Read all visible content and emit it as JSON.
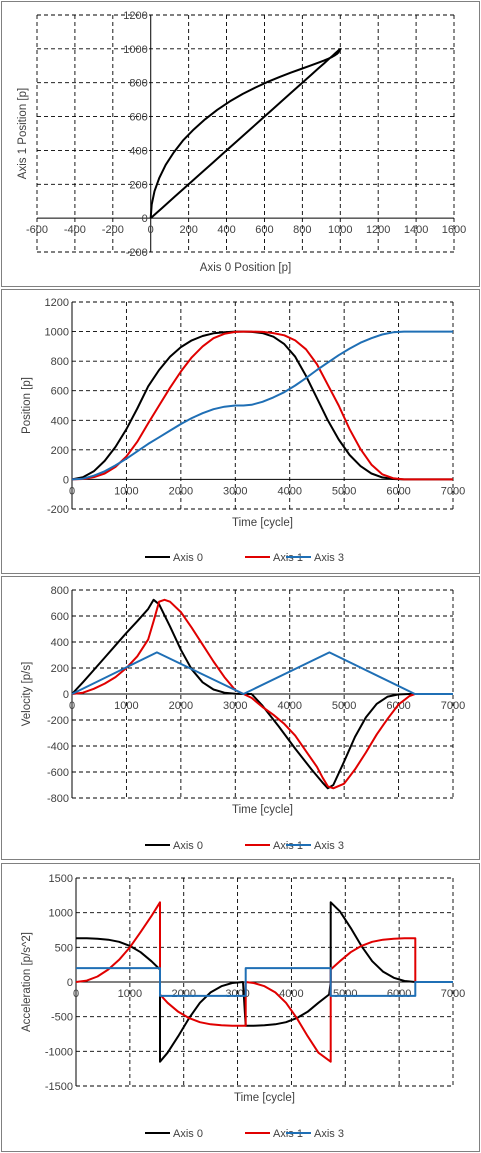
{
  "chart_data": [
    {
      "type": "line",
      "title": "",
      "xlabel": "Axis 0 Position [p]",
      "ylabel": "Axis 1 Position [p]",
      "xlim": [
        -600,
        1600
      ],
      "ylim": [
        -200,
        1200
      ],
      "xticks": [
        -600,
        -400,
        -200,
        0,
        200,
        400,
        600,
        800,
        1000,
        1200,
        1400,
        1600
      ],
      "yticks": [
        -200,
        0,
        200,
        400,
        600,
        800,
        1000,
        1200
      ],
      "grid": true,
      "legend": "none",
      "series": [
        {
          "color": "#000000",
          "x": [
            0,
            5,
            20,
            45,
            79,
            121,
            170,
            226,
            287,
            351,
            418,
            486,
            553,
            619,
            682,
            740,
            793,
            839,
            879,
            912,
            938,
            958,
            973,
            983,
            990,
            995,
            998,
            1000,
            1000,
            997,
            993,
            986,
            976,
            961,
            941,
            916,
            885,
            847,
            803,
            754,
            700,
            642,
            581,
            518,
            455,
            392,
            331,
            273,
            220,
            170,
            126,
            88,
            56,
            31,
            14,
            4,
            0
          ],
          "y": [
            0,
            80,
            159,
            238,
            315,
            388,
            458,
            523,
            584,
            640,
            690,
            734,
            772,
            806,
            835,
            860,
            881,
            900,
            916,
            930,
            942,
            953,
            963,
            971,
            979,
            986,
            993,
            1000,
            1000,
            997,
            993,
            986,
            976,
            961,
            941,
            916,
            885,
            847,
            803,
            754,
            700,
            642,
            581,
            518,
            455,
            392,
            331,
            273,
            220,
            170,
            126,
            88,
            56,
            31,
            14,
            4,
            0
          ]
        }
      ]
    },
    {
      "type": "line",
      "title": "",
      "xlabel": "Time [cycle]",
      "ylabel": "Position [p]",
      "xlim": [
        0,
        7000
      ],
      "ylim": [
        -200,
        1200
      ],
      "xticks": [
        0,
        1000,
        2000,
        3000,
        4000,
        5000,
        6000,
        7000
      ],
      "yticks": [
        -200,
        0,
        200,
        400,
        600,
        800,
        1000,
        1200
      ],
      "grid": true,
      "legend": "bottom",
      "series": [
        {
          "name": "Axis 0",
          "color": "#000000",
          "x": [
            0,
            200,
            400,
            600,
            800,
            1000,
            1200,
            1400,
            1600,
            1800,
            2000,
            2200,
            2400,
            2600,
            2800,
            3000,
            3150,
            3300,
            3500,
            3700,
            3900,
            4100,
            4300,
            4500,
            4700,
            4900,
            5100,
            5300,
            5500,
            5700,
            5900,
            6100,
            6300,
            7000
          ],
          "y": [
            0,
            15,
            55,
            125,
            220,
            340,
            480,
            630,
            740,
            830,
            895,
            940,
            970,
            988,
            996,
            1000,
            1000,
            998,
            990,
            965,
            915,
            830,
            700,
            550,
            400,
            270,
            165,
            90,
            40,
            14,
            3,
            0,
            0,
            0
          ]
        },
        {
          "name": "Axis 1",
          "color": "#e00000",
          "x": [
            0,
            200,
            400,
            600,
            800,
            1000,
            1200,
            1400,
            1600,
            1800,
            2000,
            2200,
            2400,
            2600,
            2800,
            3000,
            3150,
            3300,
            3500,
            3700,
            3900,
            4100,
            4300,
            4500,
            4700,
            4900,
            5100,
            5300,
            5500,
            5700,
            5900,
            6100,
            6300,
            7000
          ],
          "y": [
            0,
            3,
            15,
            40,
            85,
            155,
            255,
            380,
            500,
            620,
            730,
            825,
            900,
            955,
            985,
            998,
            1000,
            1000,
            998,
            990,
            975,
            940,
            880,
            780,
            640,
            500,
            340,
            205,
            100,
            35,
            8,
            0,
            0,
            0
          ]
        },
        {
          "name": "Axis 3",
          "color": "#1f6fb5",
          "x": [
            0,
            200,
            400,
            600,
            800,
            1000,
            1200,
            1400,
            1600,
            1800,
            2000,
            2200,
            2400,
            2600,
            2800,
            3000,
            3150,
            3300,
            3500,
            3700,
            3900,
            4100,
            4300,
            4500,
            4700,
            4900,
            5100,
            5300,
            5500,
            5700,
            5900,
            6100,
            6300,
            7000
          ],
          "y": [
            0,
            5,
            25,
            55,
            95,
            140,
            190,
            240,
            285,
            330,
            375,
            415,
            448,
            475,
            492,
            500,
            500,
            505,
            525,
            555,
            590,
            635,
            685,
            740,
            790,
            840,
            885,
            925,
            955,
            980,
            995,
            1000,
            1000,
            1000
          ]
        }
      ]
    },
    {
      "type": "line",
      "title": "",
      "xlabel": "Time [cycle]",
      "ylabel": "Velocity [p/s]",
      "xlim": [
        0,
        7000
      ],
      "ylim": [
        -800,
        800
      ],
      "xticks": [
        0,
        1000,
        2000,
        3000,
        4000,
        5000,
        6000,
        7000
      ],
      "yticks": [
        -800,
        -600,
        -400,
        -200,
        0,
        200,
        400,
        600,
        800
      ],
      "grid": true,
      "legend": "bottom",
      "series": [
        {
          "name": "Axis 0",
          "color": "#000000",
          "x": [
            0,
            200,
            400,
            600,
            800,
            1000,
            1200,
            1400,
            1500,
            1600,
            1800,
            2000,
            2200,
            2400,
            2600,
            2800,
            3000,
            3150,
            3300,
            3500,
            3800,
            4100,
            4400,
            4600,
            4700,
            4800,
            5000,
            5200,
            5400,
            5600,
            5800,
            6000,
            6200,
            6300,
            7000
          ],
          "y": [
            0,
            90,
            185,
            280,
            375,
            470,
            560,
            655,
            725,
            690,
            520,
            340,
            190,
            90,
            35,
            10,
            2,
            0,
            0,
            -90,
            -250,
            -420,
            -580,
            -680,
            -725,
            -700,
            -520,
            -330,
            -180,
            -75,
            -20,
            -3,
            0,
            0,
            0
          ]
        },
        {
          "name": "Axis 1",
          "color": "#e00000",
          "x": [
            0,
            200,
            400,
            600,
            800,
            1000,
            1200,
            1400,
            1500,
            1600,
            1700,
            1800,
            2000,
            2200,
            2400,
            2600,
            2800,
            3000,
            3150,
            3300,
            3500,
            3700,
            3900,
            4100,
            4300,
            4500,
            4600,
            4700,
            4800,
            5000,
            5200,
            5400,
            5600,
            5800,
            6000,
            6200,
            6300,
            7000
          ],
          "y": [
            0,
            10,
            40,
            80,
            130,
            200,
            290,
            420,
            560,
            710,
            725,
            710,
            630,
            510,
            380,
            250,
            130,
            30,
            0,
            -30,
            -100,
            -160,
            -230,
            -320,
            -440,
            -560,
            -640,
            -710,
            -725,
            -690,
            -580,
            -450,
            -310,
            -190,
            -80,
            -15,
            0,
            0
          ]
        },
        {
          "name": "Axis 3",
          "color": "#1f6fb5",
          "x": [
            0,
            1560,
            3150,
            4730,
            6300,
            7000
          ],
          "y": [
            0,
            320,
            0,
            320,
            0,
            0
          ]
        }
      ]
    },
    {
      "type": "line",
      "title": "",
      "xlabel": "Time [cycle]",
      "ylabel": "Acceleration [p/s^2]",
      "xlim": [
        0,
        7000
      ],
      "ylim": [
        -1500,
        1500
      ],
      "xticks": [
        0,
        1000,
        2000,
        3000,
        4000,
        5000,
        6000,
        7000
      ],
      "yticks": [
        -1500,
        -1000,
        -500,
        0,
        500,
        1000,
        1500
      ],
      "grid": true,
      "legend": "bottom",
      "series": [
        {
          "name": "Axis 0",
          "color": "#000000",
          "x": [
            0,
            200,
            400,
            600,
            800,
            1000,
            1200,
            1400,
            1560,
            1560,
            1700,
            1900,
            2100,
            2300,
            2500,
            2700,
            2900,
            3100,
            3150,
            3300,
            3500,
            3700,
            3900,
            4100,
            4300,
            4500,
            4700,
            4730,
            4730,
            4900,
            5100,
            5300,
            5500,
            5700,
            5900,
            6100,
            6300,
            7000
          ],
          "y": [
            630,
            630,
            625,
            610,
            580,
            520,
            430,
            300,
            180,
            -1150,
            -1020,
            -780,
            -520,
            -300,
            -150,
            -60,
            -15,
            0,
            -630,
            -630,
            -625,
            -610,
            -580,
            -520,
            -430,
            -300,
            -180,
            0,
            1150,
            1020,
            780,
            520,
            300,
            150,
            60,
            15,
            0,
            0
          ]
        },
        {
          "name": "Axis 1",
          "color": "#e00000",
          "x": [
            0,
            200,
            400,
            600,
            800,
            1000,
            1200,
            1400,
            1560,
            1560,
            1700,
            1900,
            2100,
            2300,
            2500,
            2700,
            2900,
            3100,
            3150,
            3150,
            3300,
            3500,
            3700,
            3900,
            4100,
            4300,
            4500,
            4730,
            4730,
            4900,
            5100,
            5300,
            5500,
            5700,
            5900,
            6100,
            6300,
            6300,
            7000
          ],
          "y": [
            0,
            20,
            80,
            180,
            320,
            500,
            720,
            950,
            1150,
            -180,
            -300,
            -430,
            -520,
            -580,
            -610,
            -625,
            -630,
            -630,
            -630,
            0,
            -15,
            -60,
            -150,
            -300,
            -520,
            -780,
            -1020,
            -1150,
            180,
            300,
            430,
            520,
            580,
            610,
            625,
            630,
            630,
            0,
            0
          ]
        },
        {
          "name": "Axis 3",
          "color": "#1f6fb5",
          "x": [
            0,
            1560,
            1560,
            3150,
            3150,
            4730,
            4730,
            6300,
            6300,
            7000
          ],
          "y": [
            200,
            200,
            -200,
            -200,
            200,
            200,
            -200,
            -200,
            0,
            0
          ]
        }
      ]
    }
  ]
}
